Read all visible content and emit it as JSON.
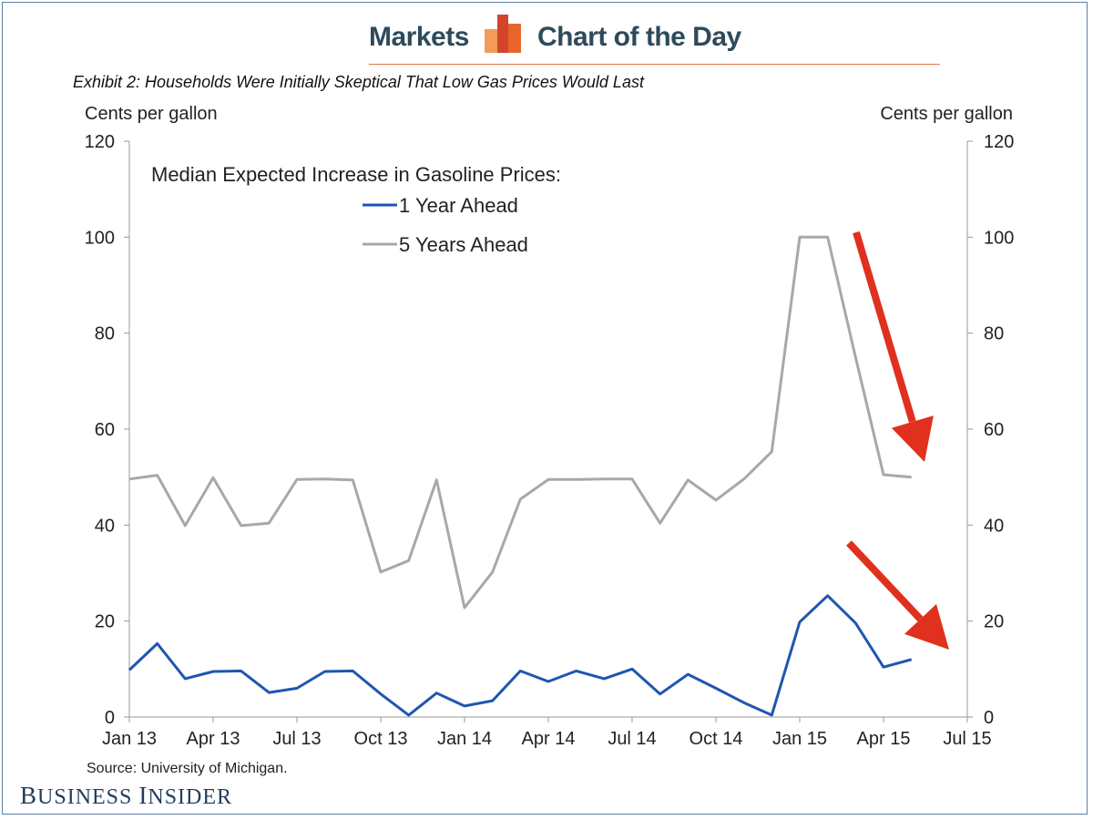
{
  "header": {
    "brand_left": "Markets",
    "brand_right": "Chart of the Day",
    "logo_colors": [
      "#f39c5a",
      "#e8642c",
      "#d2452a"
    ]
  },
  "exhibit_title": "Exhibit 2: Households Were Initially Skeptical That Low Gas Prices Would Last",
  "source": "Source: University of Michigan.",
  "footer_logo": "BUSINESS INSIDER",
  "chart_data": {
    "type": "line",
    "legend_title": "Median Expected Increase in Gasoline Prices:",
    "y_label_left": "Cents per gallon",
    "y_label_right": "Cents per gallon",
    "ylim": [
      0,
      120
    ],
    "y_ticks": [
      0,
      20,
      40,
      60,
      80,
      100,
      120
    ],
    "x_range": [
      "2013-01",
      "2015-07"
    ],
    "x_ticks": [
      "Jan 13",
      "Apr 13",
      "Jul 13",
      "Oct 13",
      "Jan 14",
      "Apr 14",
      "Jul 14",
      "Oct 14",
      "Jan 15",
      "Apr 15",
      "Jul 15"
    ],
    "x": [
      "2013-01",
      "2013-02",
      "2013-03",
      "2013-04",
      "2013-05",
      "2013-06",
      "2013-07",
      "2013-08",
      "2013-09",
      "2013-10",
      "2013-11",
      "2013-12",
      "2014-01",
      "2014-02",
      "2014-03",
      "2014-04",
      "2014-05",
      "2014-06",
      "2014-07",
      "2014-08",
      "2014-09",
      "2014-10",
      "2014-11",
      "2014-12",
      "2015-01",
      "2015-02",
      "2015-03",
      "2015-04",
      "2015-05"
    ],
    "series": [
      {
        "name": "1 Year Ahead",
        "color": "#1f56b0",
        "values": [
          9.8,
          15.3,
          8.0,
          9.5,
          9.6,
          5.1,
          6.0,
          9.5,
          9.6,
          4.8,
          0.4,
          5.0,
          2.3,
          3.4,
          9.6,
          7.4,
          9.6,
          8.0,
          10.0,
          4.8,
          8.9,
          6.0,
          3.0,
          0.4,
          19.8,
          25.3,
          19.6,
          10.4,
          12.0
        ]
      },
      {
        "name": "5 Years Ahead",
        "color": "#a8a8a8",
        "values": [
          49.6,
          50.4,
          39.9,
          49.9,
          39.9,
          40.4,
          49.5,
          49.6,
          49.4,
          30.2,
          32.6,
          49.4,
          22.8,
          30.2,
          45.4,
          49.5,
          49.5,
          49.6,
          49.6,
          40.4,
          49.4,
          45.2,
          49.6,
          55.3,
          100.0,
          100.0,
          75.0,
          50.5,
          50.0
        ]
      }
    ],
    "annotations": [
      {
        "type": "arrow",
        "color": "#e0301e",
        "target": "5 Years Ahead"
      },
      {
        "type": "arrow",
        "color": "#e0301e",
        "target": "1 Year Ahead"
      }
    ],
    "grid": false,
    "legend_placement": "top-left"
  }
}
